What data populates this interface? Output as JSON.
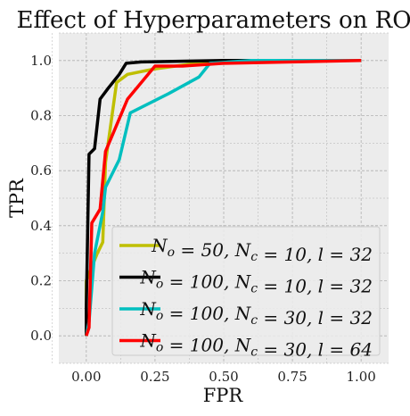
{
  "chart_data": {
    "type": "line",
    "title": "Effect of Hyperparameters on ROC",
    "xlabel": "FPR",
    "ylabel": "TPR",
    "xlim": [
      -0.1,
      1.1
    ],
    "ylim": [
      -0.1,
      1.1
    ],
    "xticks": [
      "0.00",
      "0.25",
      "0.50",
      "0.75",
      "1.00"
    ],
    "yticks": [
      "0.0",
      "0.2",
      "0.4",
      "0.6",
      "0.8",
      "1.0"
    ],
    "grid": true,
    "legend_position": "lower-right",
    "series": [
      {
        "name": "N_o = 50, N_c = 10, l = 32",
        "color": "#bfbf00",
        "x": [
          0.0,
          0.0,
          0.02,
          0.04,
          0.06,
          0.07,
          0.11,
          0.15,
          0.2,
          0.25,
          0.4,
          0.5,
          1.0
        ],
        "y": [
          0.0,
          0.2,
          0.25,
          0.3,
          0.34,
          0.63,
          0.92,
          0.95,
          0.96,
          0.97,
          0.99,
          1.0,
          1.0
        ]
      },
      {
        "name": "N_o = 100, N_c = 10, l = 32",
        "color": "#000000",
        "x": [
          0.0,
          0.0,
          0.01,
          0.02,
          0.03,
          0.05,
          0.08,
          0.12,
          0.145,
          0.2,
          0.5,
          1.0
        ],
        "y": [
          0.0,
          0.1,
          0.66,
          0.67,
          0.68,
          0.86,
          0.9,
          0.95,
          0.99,
          0.995,
          1.0,
          1.0
        ]
      },
      {
        "name": "N_o = 100, N_c = 30, l = 32",
        "color": "#00bfbf",
        "x": [
          0.0,
          0.01,
          0.03,
          0.06,
          0.07,
          0.12,
          0.16,
          0.3,
          0.41,
          0.45,
          0.6,
          1.0
        ],
        "y": [
          0.0,
          0.05,
          0.3,
          0.45,
          0.54,
          0.64,
          0.81,
          0.88,
          0.94,
          0.99,
          1.0,
          1.0
        ]
      },
      {
        "name": "N_o = 100, N_c = 30, l = 64",
        "color": "#ff0000",
        "x": [
          0.0,
          0.01,
          0.02,
          0.05,
          0.07,
          0.15,
          0.25,
          0.35,
          0.5,
          1.0
        ],
        "y": [
          0.0,
          0.03,
          0.41,
          0.46,
          0.67,
          0.86,
          0.98,
          0.98,
          0.99,
          1.0
        ]
      }
    ]
  }
}
